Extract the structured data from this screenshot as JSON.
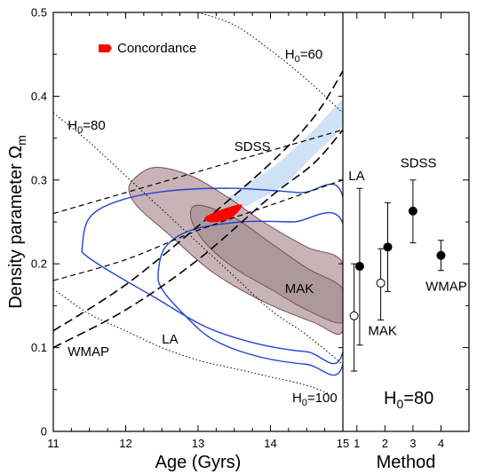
{
  "chart_data": [
    {
      "type": "scatter",
      "panel": "left",
      "xlabel": "Age (Gyrs)",
      "ylabel": "Density parameter Ω",
      "ylabel_sub": "m",
      "xlim": [
        11,
        15
      ],
      "ylim": [
        0,
        0.5
      ],
      "xticks": [
        11,
        12,
        13,
        14,
        15
      ],
      "yticks": [
        0,
        0.1,
        0.2,
        0.3,
        0.4,
        0.5
      ],
      "ytick_labels": [
        "0",
        "0.1",
        "0.2",
        "0.3",
        "0.4",
        "0.5"
      ],
      "legend": {
        "label": "Concordance",
        "color": "#ff0000",
        "placement": "top-left"
      },
      "colors": {
        "mak_outer": "#c8b4b8",
        "mak_inner": "#ad999d",
        "mak_edge": "#7a4a52",
        "la": "#2244cc",
        "wmap_band": "#cfe2f6",
        "dashed": "#000000",
        "concordance": "#ff0000"
      },
      "regions": {
        "mak_outer": [
          [
            12.1,
            0.3
          ],
          [
            12.4,
            0.315
          ],
          [
            12.9,
            0.305
          ],
          [
            13.4,
            0.28
          ],
          [
            13.9,
            0.25
          ],
          [
            14.5,
            0.22
          ],
          [
            15.0,
            0.2
          ],
          [
            15.0,
            0.12
          ],
          [
            14.6,
            0.13
          ],
          [
            13.9,
            0.155
          ],
          [
            13.2,
            0.19
          ],
          [
            12.6,
            0.235
          ],
          [
            12.2,
            0.265
          ],
          [
            12.05,
            0.285
          ]
        ],
        "mak_inner": [
          [
            13.0,
            0.27
          ],
          [
            13.5,
            0.255
          ],
          [
            14.0,
            0.225
          ],
          [
            14.5,
            0.195
          ],
          [
            15.0,
            0.17
          ],
          [
            15.0,
            0.13
          ],
          [
            14.5,
            0.145
          ],
          [
            14.0,
            0.17
          ],
          [
            13.5,
            0.195
          ],
          [
            13.1,
            0.225
          ],
          [
            12.9,
            0.255
          ]
        ],
        "la_outer": [
          [
            11.4,
            0.22
          ],
          [
            11.5,
            0.255
          ],
          [
            11.9,
            0.275
          ],
          [
            12.6,
            0.287
          ],
          [
            13.5,
            0.29
          ],
          [
            14.4,
            0.285
          ],
          [
            15.0,
            0.28
          ],
          [
            15.0,
            0.095
          ],
          [
            14.5,
            0.095
          ],
          [
            13.8,
            0.105
          ],
          [
            13.1,
            0.125
          ],
          [
            12.4,
            0.16
          ],
          [
            11.8,
            0.19
          ],
          [
            11.45,
            0.21
          ]
        ],
        "la_inner": [
          [
            12.45,
            0.19
          ],
          [
            12.55,
            0.22
          ],
          [
            12.9,
            0.24
          ],
          [
            13.6,
            0.25
          ],
          [
            14.3,
            0.25
          ],
          [
            15.0,
            0.248
          ],
          [
            15.0,
            0.08
          ],
          [
            14.5,
            0.08
          ],
          [
            13.8,
            0.09
          ],
          [
            13.2,
            0.11
          ],
          [
            12.8,
            0.14
          ],
          [
            12.5,
            0.17
          ]
        ],
        "wmap_band": [
          [
            13.0,
            0.255
          ],
          [
            13.6,
            0.29
          ],
          [
            14.1,
            0.32
          ],
          [
            14.6,
            0.36
          ],
          [
            15.0,
            0.395
          ],
          [
            15.0,
            0.365
          ],
          [
            14.6,
            0.33
          ],
          [
            14.2,
            0.295
          ],
          [
            13.8,
            0.275
          ],
          [
            13.4,
            0.258
          ]
        ],
        "concordance": [
          [
            13.1,
            0.255
          ],
          [
            13.35,
            0.265
          ],
          [
            13.6,
            0.27
          ],
          [
            13.45,
            0.255
          ],
          [
            13.2,
            0.25
          ]
        ]
      },
      "curves": {
        "wmap_upper": [
          [
            11.0,
            0.12
          ],
          [
            12.0,
            0.175
          ],
          [
            13.0,
            0.245
          ],
          [
            14.0,
            0.32
          ],
          [
            14.6,
            0.375
          ],
          [
            15.0,
            0.43
          ]
        ],
        "wmap_lower": [
          [
            11.0,
            0.1
          ],
          [
            12.0,
            0.145
          ],
          [
            13.0,
            0.205
          ],
          [
            14.0,
            0.28
          ],
          [
            14.6,
            0.32
          ],
          [
            15.0,
            0.36
          ]
        ],
        "sdss_upper": [
          [
            11.0,
            0.26
          ],
          [
            12.0,
            0.285
          ],
          [
            13.0,
            0.31
          ],
          [
            14.0,
            0.335
          ],
          [
            15.0,
            0.36
          ]
        ],
        "sdss_lower": [
          [
            11.0,
            0.18
          ],
          [
            12.0,
            0.205
          ],
          [
            13.0,
            0.24
          ],
          [
            14.0,
            0.27
          ],
          [
            15.0,
            0.3
          ]
        ],
        "h0_60": [
          [
            13.0,
            0.5
          ],
          [
            13.5,
            0.485
          ],
          [
            14.0,
            0.455
          ],
          [
            14.5,
            0.42
          ],
          [
            15.0,
            0.38
          ]
        ],
        "h0_80": [
          [
            11.0,
            0.38
          ],
          [
            11.5,
            0.345
          ],
          [
            12.0,
            0.305
          ],
          [
            12.5,
            0.265
          ],
          [
            13.0,
            0.225
          ],
          [
            13.5,
            0.185
          ],
          [
            14.0,
            0.145
          ],
          [
            14.5,
            0.115
          ],
          [
            15.0,
            0.08
          ]
        ],
        "h0_100": [
          [
            11.0,
            0.17
          ],
          [
            11.5,
            0.14
          ],
          [
            12.0,
            0.12
          ],
          [
            12.5,
            0.1
          ],
          [
            13.0,
            0.085
          ],
          [
            13.5,
            0.075
          ],
          [
            14.0,
            0.065
          ],
          [
            14.5,
            0.055
          ],
          [
            14.8,
            0.045
          ]
        ]
      },
      "annotations": [
        {
          "text": "SDSS",
          "x": 13.5,
          "y": 0.335
        },
        {
          "text": "MAK",
          "x": 14.2,
          "y": 0.165
        },
        {
          "text": "LA",
          "x": 12.5,
          "y": 0.105
        },
        {
          "text": "WMAP",
          "x": 11.2,
          "y": 0.09
        },
        {
          "text": "H",
          "sub": "0",
          "tail": "=60",
          "x": 14.2,
          "y": 0.445
        },
        {
          "text": "H",
          "sub": "0",
          "tail": "=80",
          "x": 11.2,
          "y": 0.36
        },
        {
          "text": "H",
          "sub": "0",
          "tail": "=100",
          "x": 14.3,
          "y": 0.035
        }
      ]
    },
    {
      "type": "scatter",
      "panel": "right",
      "xlabel": "Method",
      "xlim": [
        0.5,
        5
      ],
      "ylim": [
        0,
        0.5
      ],
      "xticks": [
        1,
        2,
        3,
        4
      ],
      "note": {
        "text": "H",
        "sub": "0",
        "tail": "=80"
      },
      "series": [
        {
          "name": "LA",
          "points": [
            {
              "x": 0.9,
              "y": 0.138,
              "lo": 0.072,
              "hi": 0.2,
              "filled": false
            },
            {
              "x": 1.1,
              "y": 0.197,
              "lo": 0.103,
              "hi": 0.29,
              "filled": true
            }
          ]
        },
        {
          "name": "MAK",
          "points": [
            {
              "x": 1.85,
              "y": 0.177,
              "lo": 0.133,
              "hi": 0.218,
              "filled": false
            },
            {
              "x": 2.1,
              "y": 0.22,
              "lo": 0.167,
              "hi": 0.273,
              "filled": true
            }
          ]
        },
        {
          "name": "SDSS",
          "points": [
            {
              "x": 3.0,
              "y": 0.263,
              "lo": 0.225,
              "hi": 0.3,
              "filled": true
            }
          ]
        },
        {
          "name": "WMAP",
          "points": [
            {
              "x": 4.0,
              "y": 0.21,
              "lo": 0.192,
              "hi": 0.228,
              "filled": true
            }
          ]
        }
      ],
      "labels": [
        {
          "text": "LA",
          "x": 0.7,
          "y": 0.3
        },
        {
          "text": "MAK",
          "x": 1.4,
          "y": 0.115
        },
        {
          "text": "SDSS",
          "x": 2.55,
          "y": 0.315
        },
        {
          "text": "WMAP",
          "x": 3.45,
          "y": 0.168
        }
      ]
    }
  ]
}
